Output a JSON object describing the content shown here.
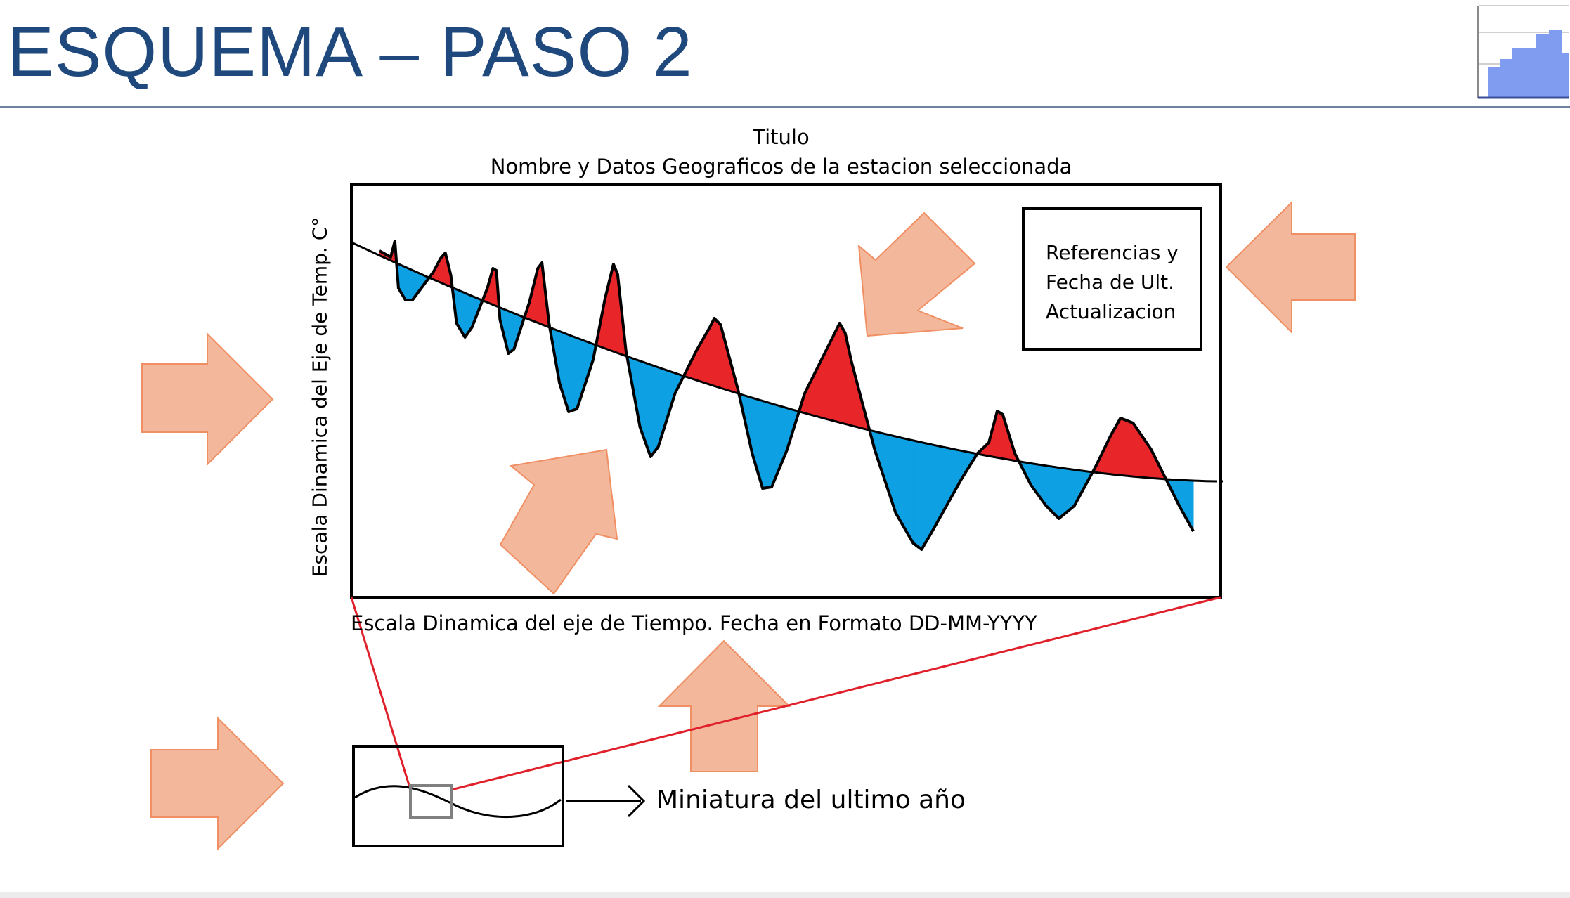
{
  "slide": {
    "title": "ESQUEMA – PASO 2"
  },
  "chart": {
    "title_line1": "Titulo",
    "title_line2": "Nombre y Datos Geograficos de la estacion seleccionada",
    "y_axis_label": "Escala Dinamica del Eje de Temp. C°",
    "x_axis_label": "Escala Dinamica del eje de Tiempo. Fecha en Formato DD-MM-YYYY"
  },
  "legend": {
    "line1": "Referencias y",
    "line2": "Fecha de Ult.",
    "line3": "Actualizacion"
  },
  "miniature": {
    "label": "Miniatura del ultimo año"
  },
  "colors": {
    "title": "#1f497d",
    "above_fill": "#e8262a",
    "below_fill": "#0da0e3",
    "arrow_fill": "#f3b89c",
    "arrow_stroke": "#f08f63",
    "zoom_lines": "#e0202a",
    "thumb_bars": "#7f9cf0"
  }
}
